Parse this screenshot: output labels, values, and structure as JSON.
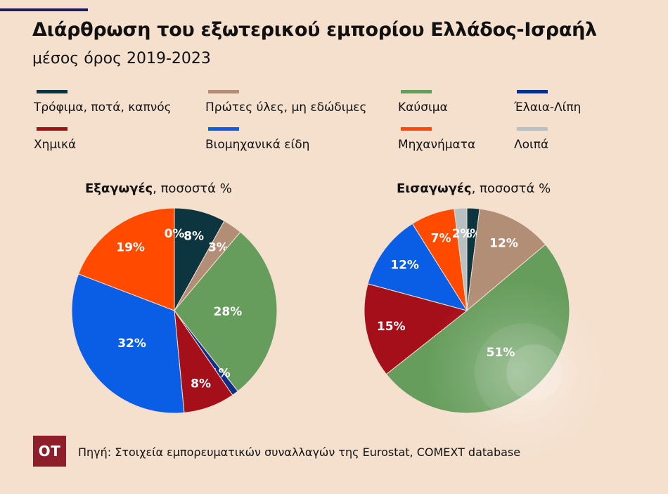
{
  "header": {
    "title": "Διάρθρωση του εξωτερικού εμπορίου Ελλάδος-Ισραήλ",
    "subtitle": "μέσος όρος 2019-2023"
  },
  "legend": [
    {
      "key": "food",
      "label": "Τρόφιμα, ποτά, καπνός",
      "color": "#0c3540"
    },
    {
      "key": "raw",
      "label": "Πρώτες ύλες, μη εδώδιμες",
      "color": "#b28e76"
    },
    {
      "key": "fuels",
      "label": "Καύσιμα",
      "color": "#669d5c"
    },
    {
      "key": "oils",
      "label": "Έλαια-Λίπη",
      "color": "#0d2f8c"
    },
    {
      "key": "chemicals",
      "label": "Χημικά",
      "color": "#a50f1a"
    },
    {
      "key": "manuf",
      "label": "Βιομηχανικά είδη",
      "color": "#0a5ee6"
    },
    {
      "key": "machinery",
      "label": "Μηχανήματα",
      "color": "#ff4a00"
    },
    {
      "key": "other",
      "label": "Λοιπά",
      "color": "#b8c0c4"
    }
  ],
  "chart_data": [
    {
      "type": "pie",
      "title": "Εξαγωγές",
      "subtitle": ", ποσοστά %",
      "slices": [
        {
          "key": "food",
          "value": 8,
          "label": "8%"
        },
        {
          "key": "raw",
          "value": 3,
          "label": "3%"
        },
        {
          "key": "fuels",
          "value": 28,
          "label": "28%"
        },
        {
          "key": "oils",
          "value": 1,
          "label": "1%"
        },
        {
          "key": "chemicals",
          "value": 8,
          "label": "8%"
        },
        {
          "key": "manuf",
          "value": 32,
          "label": "32%"
        },
        {
          "key": "machinery",
          "value": 19,
          "label": "19%"
        },
        {
          "key": "other",
          "value": 0,
          "label": "0%"
        }
      ]
    },
    {
      "type": "pie",
      "title": "Εισαγωγές",
      "subtitle": ", ποσοστά %",
      "slices": [
        {
          "key": "food",
          "value": 2,
          "label": "2%"
        },
        {
          "key": "raw",
          "value": 12,
          "label": "12%"
        },
        {
          "key": "fuels",
          "value": 51,
          "label": "51%"
        },
        {
          "key": "oils",
          "value": 0,
          "label": ""
        },
        {
          "key": "chemicals",
          "value": 15,
          "label": "15%"
        },
        {
          "key": "manuf",
          "value": 12,
          "label": "12%"
        },
        {
          "key": "machinery",
          "value": 7,
          "label": "7%"
        },
        {
          "key": "other",
          "value": 2,
          "label": "2%"
        }
      ]
    }
  ],
  "footer": {
    "logo_text": "OT",
    "source": "Πηγή: Στοιχεία εμπορευματικών συναλλαγών της Eurostat, COMEXT database"
  }
}
